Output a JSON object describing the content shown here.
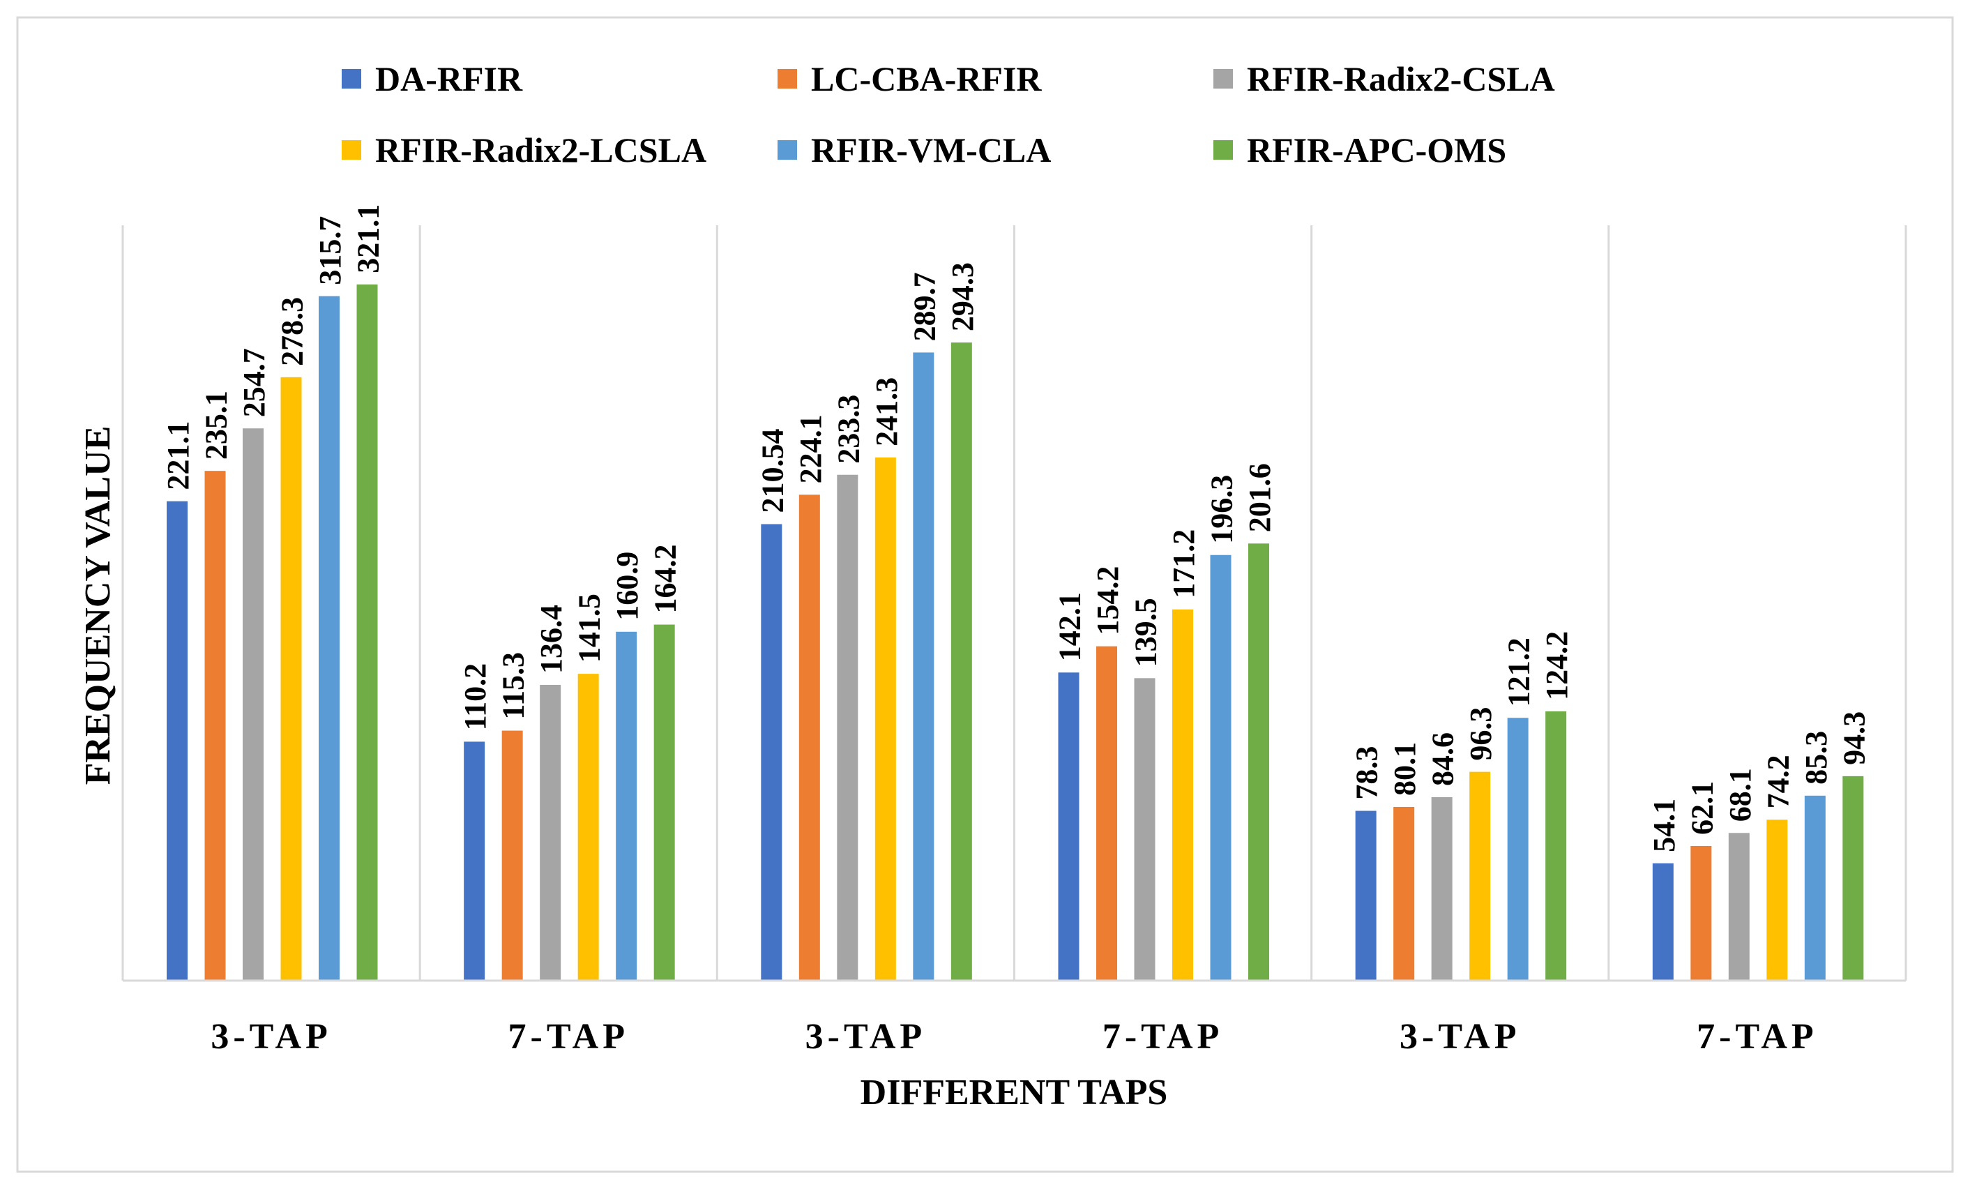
{
  "chart_data": {
    "type": "bar",
    "title": "",
    "xlabel": "DIFFERENT TAPS",
    "ylabel": "FREQUENCY VALUE",
    "categories": [
      "3-TAP",
      "7-TAP",
      "3-TAP",
      "7-TAP",
      "3-TAP",
      "7-TAP"
    ],
    "ylim": [
      0,
      350
    ],
    "grid": "vertical separators between category groups",
    "legend_placement": "top",
    "series": [
      {
        "name": "DA-RFIR",
        "color": "#4472C4",
        "values": [
          221.1,
          110.2,
          210.54,
          142.1,
          78.3,
          54.1
        ],
        "labels": [
          "221.1",
          "110.2",
          "210.54",
          "142.1",
          "78.3",
          "54.1"
        ]
      },
      {
        "name": "LC-CBA-RFIR",
        "color": "#ED7D31",
        "values": [
          235.1,
          115.3,
          224.1,
          154.2,
          80.1,
          62.1
        ],
        "labels": [
          "235.1",
          "115.3",
          "224.1",
          "154.2",
          "80.1",
          "62.1"
        ]
      },
      {
        "name": "RFIR-Radix2-CSLA",
        "color": "#A5A5A5",
        "values": [
          254.7,
          136.4,
          233.3,
          139.5,
          84.6,
          68.1
        ],
        "labels": [
          "254.7",
          "136.4",
          "233.3",
          "139.5",
          "84.6",
          "68.1"
        ]
      },
      {
        "name": "RFIR-Radix2-LCSLA",
        "color": "#FFC000",
        "values": [
          278.3,
          141.5,
          241.3,
          171.2,
          96.3,
          74.2
        ],
        "labels": [
          "278.3",
          "141.5",
          "241.3",
          "171.2",
          "96.3",
          "74.2"
        ]
      },
      {
        "name": "RFIR-VM-CLA",
        "color": "#5B9BD5",
        "values": [
          315.7,
          160.9,
          289.7,
          196.3,
          121.2,
          85.3
        ],
        "labels": [
          "315.7",
          "160.9",
          "289.7",
          "196.3",
          "121.2",
          "85.3"
        ]
      },
      {
        "name": "RFIR-APC-OMS",
        "color": "#70AD47",
        "values": [
          321.1,
          164.2,
          294.3,
          201.6,
          124.2,
          94.3
        ],
        "labels": [
          "321.1",
          "164.2",
          "294.3",
          "201.6",
          "124.2",
          "94.3"
        ]
      }
    ]
  }
}
